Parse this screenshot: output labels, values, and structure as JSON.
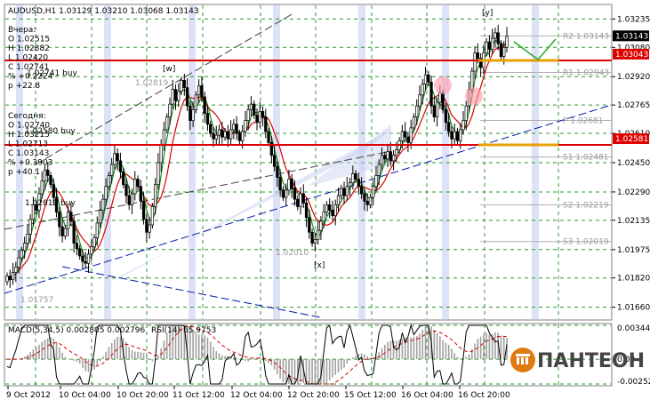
{
  "chart_data": {
    "type": "candlestick",
    "symbol_line": "AUDUSD,H1  1.03129 1.03210 1.03068 1.03143",
    "main_ylim": [
      1.016,
      1.033
    ],
    "main_ticks": [
      "1.03235",
      "1.03080",
      "1.02920",
      "1.02765",
      "1.02610",
      "1.02450",
      "1.02290",
      "1.02135",
      "1.01975",
      "1.01820",
      "1.01660"
    ],
    "price_tags": [
      {
        "label": "1.03143",
        "price": 1.03143,
        "color": "#000000"
      },
      {
        "label": "1.03043",
        "price": 1.03043,
        "color": "#dd0000"
      },
      {
        "label": "1.02581",
        "price": 1.02581,
        "color": "#dd0000"
      }
    ],
    "x_labels": [
      "9 Oct 2012",
      "10 Oct 04:00",
      "10 Oct 20:00",
      "11 Oct 12:00",
      "12 Oct 04:00",
      "12 Oct 20:00",
      "15 Oct 12:00",
      "16 Oct 04:00",
      "16 Oct 20:00"
    ],
    "panel_left": {
      "yesterday": [
        "Вчера:",
        "O 1.02515",
        "H 1.02882",
        "L 1.02420",
        "C 1.02741",
        "% +0.2224",
        "p +22.8"
      ],
      "today": [
        "Сегодня:",
        "O 1.02740",
        "H 1.03215",
        "L 1.02713",
        "C 1.03143",
        "% +0.3903",
        "p +40.1"
      ],
      "buy_1": "1.02741 buy",
      "buy_2": "1.02580 buy",
      "buy_3": "1.02819 buy"
    },
    "pivot_levels": [
      {
        "label": "R2 1.03143",
        "price": 1.03143
      },
      {
        "label": "R1 1.02943",
        "price": 1.02943
      },
      {
        "label": "P 1.02681",
        "price": 1.02681
      },
      {
        "label": "S1 1.02481",
        "price": 1.02481
      },
      {
        "label": "S2 1.02219",
        "price": 1.02219
      },
      {
        "label": "S3 1.02019",
        "price": 1.02019
      }
    ],
    "other_labels": {
      "low_label": "1.01757",
      "mid_low_label": "1.02010",
      "mid_label": "1.02819"
    },
    "wave_labels": [
      "[w]",
      "[x]",
      "[y]"
    ],
    "macd": {
      "label": "MACD(5,34,5)  0.002805 0.002796",
      "rsi_label": "RSI(14) 65.9753",
      "ticks": [
        "0.003441",
        "0.00",
        "-0.00252"
      ],
      "ylim": [
        -0.00252,
        0.003441
      ]
    },
    "logo": "ПАНТЕОН",
    "closes": [
      1.0183,
      1.0181,
      1.0185,
      1.0188,
      1.0193,
      1.0197,
      1.0201,
      1.0206,
      1.0214,
      1.0222,
      1.0219,
      1.0228,
      1.0235,
      1.0241,
      1.0238,
      1.0233,
      1.0226,
      1.0218,
      1.021,
      1.0205,
      1.0209,
      1.0218,
      1.0213,
      1.0201,
      1.0198,
      1.0194,
      1.0191,
      1.019,
      1.0195,
      1.0199,
      1.0204,
      1.0212,
      1.0219,
      1.0225,
      1.0232,
      1.0238,
      1.0244,
      1.025,
      1.0246,
      1.024,
      1.0233,
      1.0227,
      1.0222,
      1.0228,
      1.0236,
      1.0232,
      1.0224,
      1.0214,
      1.0207,
      1.0211,
      1.0221,
      1.0233,
      1.0245,
      1.0255,
      1.0263,
      1.027,
      1.0277,
      1.0285,
      1.0279,
      1.0284,
      1.029,
      1.0286,
      1.0276,
      1.0268,
      1.0274,
      1.0282,
      1.0287,
      1.0281,
      1.0272,
      1.0266,
      1.0261,
      1.0258,
      1.026,
      1.0263,
      1.0259,
      1.0262,
      1.0258,
      1.0263,
      1.0266,
      1.0261,
      1.0257,
      1.0262,
      1.0268,
      1.0274,
      1.0277,
      1.0271,
      1.0267,
      1.0273,
      1.027,
      1.0262,
      1.0256,
      1.0249,
      1.0243,
      1.0237,
      1.023,
      1.0226,
      1.023,
      1.0236,
      1.0231,
      1.0225,
      1.0221,
      1.0228,
      1.0223,
      1.0215,
      1.0207,
      1.0201,
      1.0203,
      1.0208,
      1.0213,
      1.0218,
      1.0222,
      1.0219,
      1.0216,
      1.0222,
      1.0227,
      1.0231,
      1.0227,
      1.0232,
      1.0234,
      1.0239,
      1.0236,
      1.0232,
      1.0228,
      1.0224,
      1.0222,
      1.0226,
      1.0232,
      1.0238,
      1.0244,
      1.0249,
      1.0247,
      1.0251,
      1.0246,
      1.0249,
      1.0252,
      1.0257,
      1.0262,
      1.0259,
      1.0256,
      1.0264,
      1.027,
      1.0276,
      1.0282,
      1.0288,
      1.0293,
      1.0289,
      1.0276,
      1.027,
      1.0278,
      1.0283,
      1.0274,
      1.0267,
      1.0262,
      1.0258,
      1.0262,
      1.0257,
      1.0263,
      1.0268,
      1.0276,
      1.0285,
      1.0295,
      1.0305,
      1.0302,
      1.0297,
      1.0305,
      1.0311,
      1.0307,
      1.0313,
      1.0316,
      1.031,
      1.0303,
      1.0308,
      1.0314
    ]
  }
}
